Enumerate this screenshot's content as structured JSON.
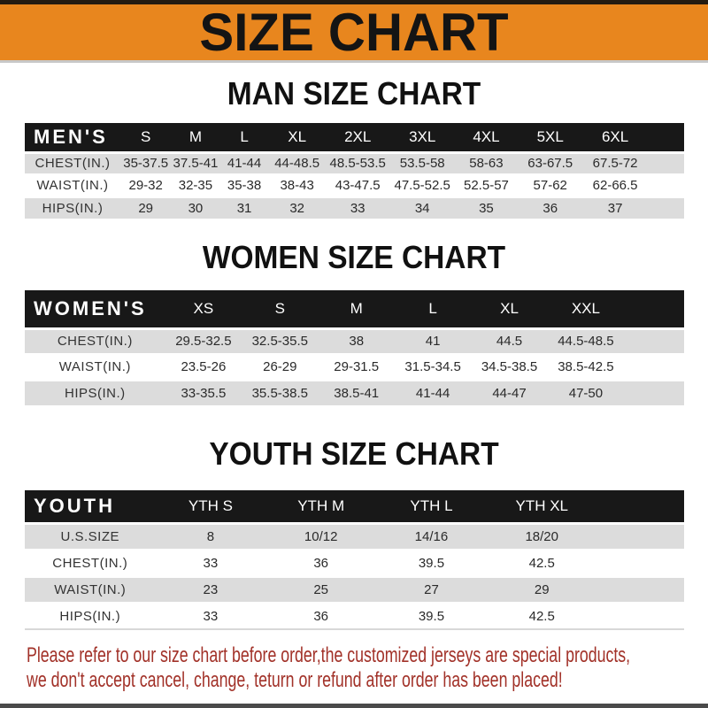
{
  "banner": {
    "title": "SIZE CHART"
  },
  "sections": [
    {
      "heading": "MAN SIZE CHART",
      "table": {
        "label": "MEN'S",
        "columns": [
          "S",
          "M",
          "L",
          "XL",
          "2XL",
          "3XL",
          "4XL",
          "5XL",
          "6XL"
        ],
        "rows": [
          {
            "label": "CHEST(IN.)",
            "values": [
              "35-37.5",
              "37.5-41",
              "41-44",
              "44-48.5",
              "48.5-53.5",
              "53.5-58",
              "58-63",
              "63-67.5",
              "67.5-72"
            ]
          },
          {
            "label": "WAIST(IN.)",
            "values": [
              "29-32",
              "32-35",
              "35-38",
              "38-43",
              "43-47.5",
              "47.5-52.5",
              "52.5-57",
              "57-62",
              "62-66.5"
            ]
          },
          {
            "label": "HIPS(IN.)",
            "values": [
              "29",
              "30",
              "31",
              "32",
              "33",
              "34",
              "35",
              "36",
              "37"
            ]
          }
        ]
      }
    },
    {
      "heading": "WOMEN SIZE CHART",
      "table": {
        "label": "WOMEN'S",
        "columns": [
          "XS",
          "S",
          "M",
          "L",
          "XL",
          "XXL"
        ],
        "rows": [
          {
            "label": "CHEST(IN.)",
            "values": [
              "29.5-32.5",
              "32.5-35.5",
              "38",
              "41",
              "44.5",
              "44.5-48.5"
            ]
          },
          {
            "label": "WAIST(IN.)",
            "values": [
              "23.5-26",
              "26-29",
              "29-31.5",
              "31.5-34.5",
              "34.5-38.5",
              "38.5-42.5"
            ]
          },
          {
            "label": "HIPS(IN.)",
            "values": [
              "33-35.5",
              "35.5-38.5",
              "38.5-41",
              "41-44",
              "44-47",
              "47-50"
            ]
          }
        ]
      }
    },
    {
      "heading": "YOUTH SIZE CHART",
      "table": {
        "label": "YOUTH",
        "columns": [
          "YTH S",
          "YTH M",
          "YTH L",
          "YTH XL"
        ],
        "rows": [
          {
            "label": "U.S.SIZE",
            "values": [
              "8",
              "10/12",
              "14/16",
              "18/20"
            ]
          },
          {
            "label": "CHEST(IN.)",
            "values": [
              "33",
              "36",
              "39.5",
              "42.5"
            ]
          },
          {
            "label": "WAIST(IN.)",
            "values": [
              "23",
              "25",
              "27",
              "29"
            ]
          },
          {
            "label": "HIPS(IN.)",
            "values": [
              "33",
              "36",
              "39.5",
              "42.5"
            ]
          }
        ]
      }
    }
  ],
  "footer": {
    "line1": "Please refer to our size chart before order,the customized jerseys are special products,",
    "line2": "we don't accept cancel, change, teturn or refund after order has been placed!"
  },
  "colors": {
    "banner_orange": "#E8861E",
    "header_black": "#181818",
    "row_gray": "#DCDCDC",
    "footer_red": "#A23229"
  }
}
